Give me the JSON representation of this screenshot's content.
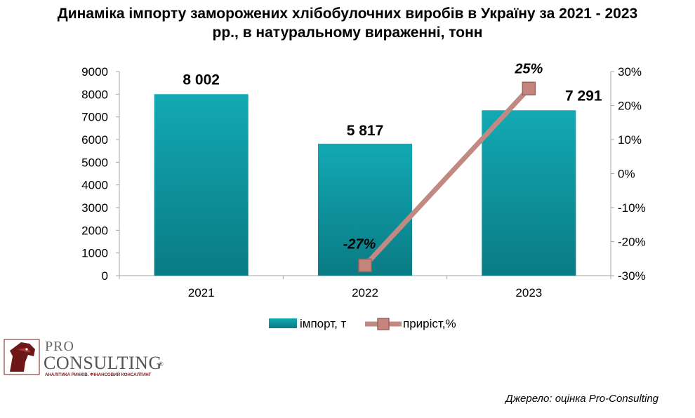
{
  "title_line1": "Динаміка імпорту заморожених хлібобулочних виробів в Україну за 2021 - 2023",
  "title_line2": "рр., в натуральному вираженні, тонн",
  "source": "Джерело: оцінка Pro-Consulting",
  "logo": {
    "text_top": "PRO",
    "text_main": "CONSULTING",
    "text_reg": "®",
    "tagline": "АНАЛІТИКА РИНКІВ. ФІНАНСОВИЙ КОНСАЛТИНГ"
  },
  "colors": {
    "bar_top": "#12a9b4",
    "bar_bottom": "#0a7b84",
    "line": "#c08a83",
    "marker": "#c4857d",
    "marker_border": "#a0625a"
  },
  "chart_data": {
    "type": "bar+line",
    "categories": [
      "2021",
      "2022",
      "2023"
    ],
    "series": [
      {
        "name": "імпорт, т",
        "type": "bar",
        "axis": "left",
        "values": [
          8002,
          5817,
          7291
        ],
        "labels": [
          "8 002",
          "5 817",
          "7 291"
        ]
      },
      {
        "name": "приріст,%",
        "type": "line",
        "axis": "right",
        "points": [
          {
            "x": "2022",
            "y": -27,
            "label": "-27%"
          },
          {
            "x": "2023",
            "y": 25,
            "label": "25%"
          }
        ]
      }
    ],
    "y_left": {
      "min": 0,
      "max": 9000,
      "step": 1000,
      "ticks": [
        "0",
        "1000",
        "2000",
        "3000",
        "4000",
        "5000",
        "6000",
        "7000",
        "8000",
        "9000"
      ]
    },
    "y_right": {
      "min": -30,
      "max": 30,
      "step": 10,
      "ticks": [
        "-30%",
        "-20%",
        "-10%",
        "0%",
        "10%",
        "20%",
        "30%"
      ]
    },
    "grid": false,
    "legend_position": "bottom"
  }
}
